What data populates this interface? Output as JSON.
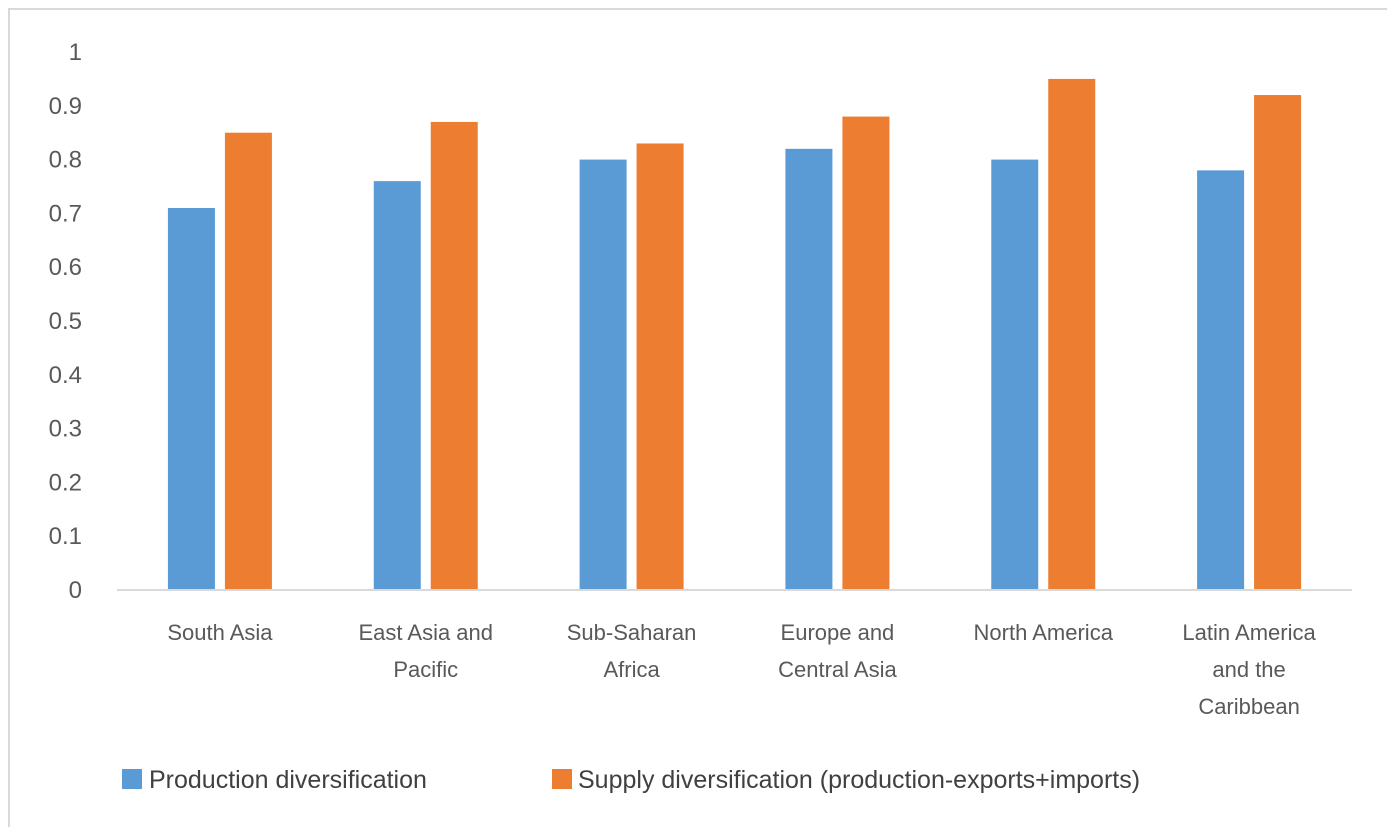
{
  "chart_data": {
    "type": "bar",
    "title": "",
    "xlabel": "",
    "ylabel": "",
    "categories": [
      [
        "South Asia"
      ],
      [
        "East Asia and",
        "Pacific"
      ],
      [
        "Sub-Saharan",
        "Africa"
      ],
      [
        "Europe and",
        "Central Asia"
      ],
      [
        "North America"
      ],
      [
        "Latin America",
        "and the",
        "Caribbean"
      ]
    ],
    "series": [
      {
        "name": "Production diversification",
        "color": "#5b9bd5",
        "values": [
          0.71,
          0.76,
          0.8,
          0.82,
          0.8,
          0.78
        ]
      },
      {
        "name": "Supply diversification (production-exports+imports)",
        "color": "#ed7d31",
        "values": [
          0.85,
          0.87,
          0.83,
          0.88,
          0.95,
          0.92
        ]
      }
    ],
    "ylim": [
      0,
      1
    ],
    "yticks": [
      "0",
      "0.1",
      "0.2",
      "0.3",
      "0.4",
      "0.5",
      "0.6",
      "0.7",
      "0.8",
      "0.9",
      "1"
    ],
    "grid": false,
    "legend_position": "bottom"
  }
}
